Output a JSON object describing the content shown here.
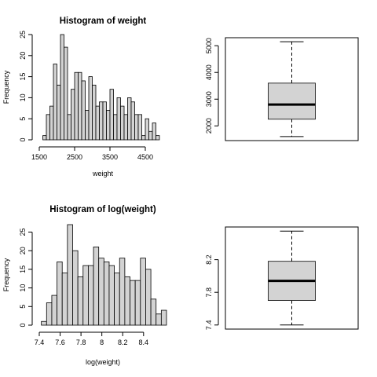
{
  "chart_data": [
    {
      "type": "bar",
      "subtype": "histogram",
      "title": "Histogram of weight",
      "xlabel": "weight",
      "ylabel": "Frequency",
      "bin_start": 1600,
      "bin_width": 100,
      "values": [
        1,
        6,
        8,
        18,
        13,
        25,
        22,
        6,
        12,
        16,
        16,
        14,
        7,
        15,
        13,
        8,
        9,
        9,
        7,
        12,
        6,
        10,
        8,
        6,
        10,
        9,
        6,
        6,
        1,
        5,
        2,
        4,
        1
      ],
      "xticks": [
        1500,
        2500,
        3500,
        4500
      ],
      "yticks": [
        0,
        5,
        10,
        15,
        20,
        25
      ],
      "xlim": [
        1500,
        5100
      ],
      "ylim": [
        0,
        25
      ]
    },
    {
      "type": "boxplot",
      "title": "",
      "min": 1600,
      "q1": 2250,
      "median": 2800,
      "q3": 3600,
      "max": 5150,
      "yticks": [
        2000,
        3000,
        4000,
        5000
      ],
      "ylim": [
        1450,
        5300
      ]
    },
    {
      "type": "bar",
      "subtype": "histogram",
      "title": "Histogram of log(weight)",
      "xlabel": "log(weight)",
      "ylabel": "Frequency",
      "bin_start": 7.42,
      "bin_width": 0.05,
      "values": [
        1,
        6,
        8,
        17,
        14,
        27,
        20,
        13,
        16,
        16,
        21,
        18,
        17,
        16,
        14,
        18,
        13,
        12,
        12,
        18,
        15,
        7,
        3,
        4
      ],
      "xticks": [
        7.4,
        7.6,
        7.8,
        8.0,
        8.2,
        8.4
      ],
      "yticks": [
        0,
        5,
        10,
        15,
        20,
        25
      ],
      "xlim": [
        7.4,
        8.62
      ],
      "ylim": [
        0,
        27
      ]
    },
    {
      "type": "boxplot",
      "title": "",
      "min": 7.4,
      "q1": 7.7,
      "median": 7.94,
      "q3": 8.18,
      "max": 8.55,
      "yticks": [
        7.4,
        7.8,
        8.2
      ],
      "ylim": [
        7.35,
        8.6
      ]
    }
  ]
}
